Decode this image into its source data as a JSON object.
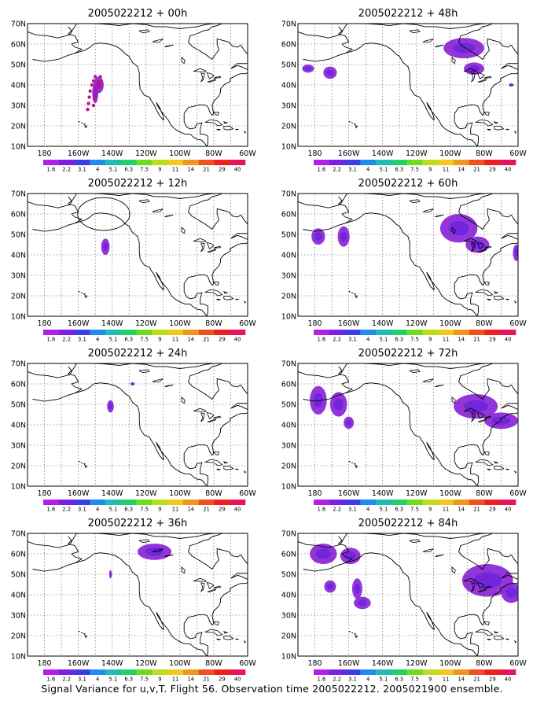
{
  "caption": "Signal Variance for u,v,T. Flight 56. Observation time 2005022212. 2005021900 ensemble.",
  "colors": {
    "coast": "#000000",
    "grid": "#555555",
    "blob": "#8d2ad8",
    "blob_dark": "#6a22e0",
    "track": "#c8108a"
  },
  "lat_labels": [
    "70N",
    "60N",
    "50N",
    "40N",
    "30N",
    "20N",
    "10N"
  ],
  "lon_labels": [
    "180",
    "160W",
    "140W",
    "120W",
    "100W",
    "80W",
    "60W"
  ],
  "colorbar": {
    "labels": [
      "1.6",
      "2.2",
      "3.1",
      "4",
      "5.1",
      "6.3",
      "7.5",
      "9",
      "11",
      "14",
      "21",
      "29",
      "40"
    ],
    "colors": [
      "#b41ee6",
      "#7a1ee8",
      "#3c3ce8",
      "#1e8cf0",
      "#1ebeb4",
      "#1ed264",
      "#6edc1e",
      "#bedc1e",
      "#f0c81e",
      "#f0961e",
      "#f0501e",
      "#f01e1e",
      "#e6145a"
    ]
  },
  "panels": [
    {
      "id": "p00",
      "title": "2005022212 + 00h",
      "col": 0,
      "row": 0,
      "track": true,
      "circle": false,
      "blobs": [
        {
          "lon": -148,
          "lat": 40,
          "rlon": 3,
          "rlat": 4
        },
        {
          "lon": -150,
          "lat": 36,
          "rlon": 1.8,
          "rlat": 5
        }
      ]
    },
    {
      "id": "p48",
      "title": "2005022212 + 48h",
      "col": 1,
      "row": 0,
      "track": false,
      "circle": false,
      "blobs": [
        {
          "lon": -92,
          "lat": 58,
          "rlon": 12,
          "rlat": 5
        },
        {
          "lon": -86,
          "lat": 48,
          "rlon": 6,
          "rlat": 3
        },
        {
          "lon": -184,
          "lat": 48,
          "rlon": 3.5,
          "rlat": 2
        },
        {
          "lon": -171,
          "lat": 46,
          "rlon": 4,
          "rlat": 3
        },
        {
          "lon": -64,
          "lat": 40,
          "rlon": 1.5,
          "rlat": 0.8
        }
      ]
    },
    {
      "id": "p12",
      "title": "2005022212 + 12h",
      "col": 0,
      "row": 1,
      "track": false,
      "circle": true,
      "blobs": [
        {
          "lon": -144,
          "lat": 44,
          "rlon": 2.5,
          "rlat": 4
        }
      ]
    },
    {
      "id": "p60",
      "title": "2005022212 + 60h",
      "col": 1,
      "row": 1,
      "track": false,
      "circle": false,
      "blobs": [
        {
          "lon": -95,
          "lat": 53,
          "rlon": 11,
          "rlat": 7
        },
        {
          "lon": -84,
          "lat": 45,
          "rlon": 7,
          "rlat": 4
        },
        {
          "lon": -178,
          "lat": 49,
          "rlon": 4,
          "rlat": 4
        },
        {
          "lon": -163,
          "lat": 49,
          "rlon": 3.5,
          "rlat": 5
        },
        {
          "lon": -61,
          "lat": 41,
          "rlon": 2,
          "rlat": 4
        }
      ]
    },
    {
      "id": "p24",
      "title": "2005022212 + 24h",
      "col": 0,
      "row": 2,
      "track": false,
      "circle": false,
      "blobs": [
        {
          "lon": -141,
          "lat": 49,
          "rlon": 2,
          "rlat": 3
        },
        {
          "lon": -128,
          "lat": 60,
          "rlon": 1.2,
          "rlat": 0.8
        }
      ]
    },
    {
      "id": "p72",
      "title": "2005022212 + 72h",
      "col": 1,
      "row": 2,
      "track": false,
      "circle": false,
      "blobs": [
        {
          "lon": -178,
          "lat": 52,
          "rlon": 5,
          "rlat": 7
        },
        {
          "lon": -166,
          "lat": 50,
          "rlon": 5,
          "rlat": 6
        },
        {
          "lon": -160,
          "lat": 41,
          "rlon": 3,
          "rlat": 3
        },
        {
          "lon": -85,
          "lat": 49,
          "rlon": 13,
          "rlat": 6
        },
        {
          "lon": -70,
          "lat": 42,
          "rlon": 10,
          "rlat": 4
        }
      ]
    },
    {
      "id": "p36",
      "title": "2005022212 + 36h",
      "col": 0,
      "row": 3,
      "track": false,
      "circle": false,
      "blobs": [
        {
          "lon": -115,
          "lat": 61,
          "rlon": 10,
          "rlat": 4
        },
        {
          "lon": -141,
          "lat": 50,
          "rlon": 0.8,
          "rlat": 2
        }
      ]
    },
    {
      "id": "p84",
      "title": "2005022212 + 84h",
      "col": 1,
      "row": 3,
      "track": false,
      "circle": false,
      "blobs": [
        {
          "lon": -175,
          "lat": 60,
          "rlon": 8,
          "rlat": 5
        },
        {
          "lon": -159,
          "lat": 59,
          "rlon": 6,
          "rlat": 4
        },
        {
          "lon": -171,
          "lat": 44,
          "rlon": 3.5,
          "rlat": 3
        },
        {
          "lon": -155,
          "lat": 43,
          "rlon": 3,
          "rlat": 5
        },
        {
          "lon": -152,
          "lat": 36,
          "rlon": 5,
          "rlat": 3
        },
        {
          "lon": -78,
          "lat": 47,
          "rlon": 15,
          "rlat": 8
        },
        {
          "lon": -64,
          "lat": 41,
          "rlon": 6,
          "rlat": 5
        }
      ]
    }
  ]
}
